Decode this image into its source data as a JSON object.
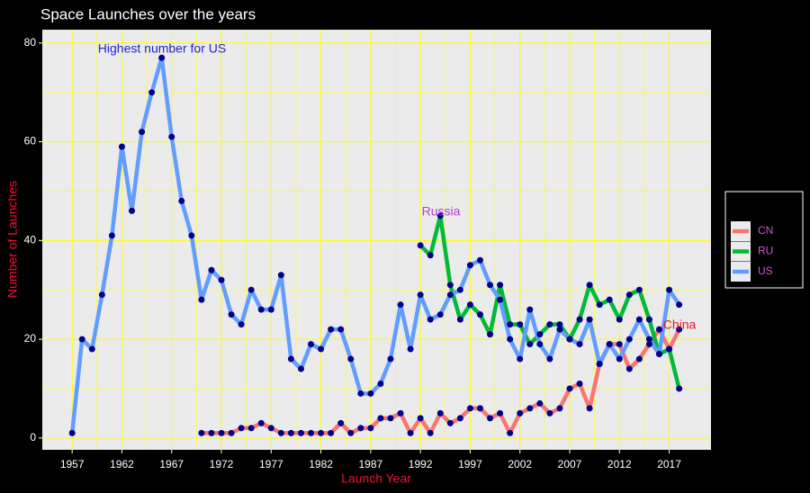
{
  "chart_data": {
    "type": "line",
    "title": "Space Launches over the years",
    "x_label": "Launch Year",
    "y_label": "Number of Launches",
    "xlim": [
      1954,
      2021.2
    ],
    "ylim": [
      -2.4,
      82.7
    ],
    "xticks": [
      1957,
      1962,
      1967,
      1972,
      1977,
      1982,
      1987,
      1992,
      1997,
      2002,
      2007,
      2012,
      2017
    ],
    "yticks": [
      0,
      20,
      40,
      60,
      80
    ],
    "grid": true,
    "grid_color": "#ffff00",
    "panel_color": "#ebebeb",
    "point_color": "#00008b",
    "legend": "right",
    "annotations": [
      {
        "text": "Highest number for US",
        "color": "#2222dd"
      },
      {
        "text": "Russia",
        "color": "#b040d0"
      },
      {
        "text": "China",
        "color": "#ee1133"
      }
    ],
    "series": [
      {
        "name": "CN",
        "color": "#f8766d",
        "x": [
          1970,
          1971,
          1972,
          1973,
          1974,
          1975,
          1976,
          1977,
          1978,
          1979,
          1980,
          1981,
          1982,
          1983,
          1984,
          1985,
          1986,
          1987,
          1988,
          1989,
          1990,
          1991,
          1992,
          1993,
          1994,
          1995,
          1996,
          1997,
          1998,
          1999,
          2000,
          2001,
          2002,
          2003,
          2004,
          2005,
          2006,
          2007,
          2008,
          2009,
          2010,
          2011,
          2012,
          2013,
          2014,
          2015,
          2016,
          2017,
          2018
        ],
        "values": [
          1,
          1,
          1,
          1,
          2,
          2,
          3,
          2,
          1,
          1,
          1,
          1,
          1,
          1,
          3,
          1,
          2,
          2,
          4,
          4,
          5,
          1,
          4,
          1,
          5,
          3,
          4,
          6,
          6,
          4,
          5,
          1,
          5,
          6,
          7,
          5,
          6,
          10,
          11,
          6,
          15,
          19,
          19,
          14,
          16,
          19,
          22,
          18,
          22
        ]
      },
      {
        "name": "RU",
        "color": "#00ba38",
        "x": [
          1992,
          1993,
          1994,
          1995,
          1996,
          1997,
          1998,
          1999,
          2000,
          2001,
          2002,
          2003,
          2004,
          2005,
          2006,
          2007,
          2008,
          2009,
          2010,
          2011,
          2012,
          2013,
          2014,
          2015,
          2016,
          2017,
          2018
        ],
        "values": [
          39,
          37,
          45,
          31,
          24,
          27,
          25,
          21,
          31,
          23,
          23,
          19,
          21,
          23,
          23,
          20,
          24,
          31,
          27,
          28,
          24,
          29,
          30,
          24,
          17,
          18,
          10
        ]
      },
      {
        "name": "US",
        "color": "#619cff",
        "x": [
          1957,
          1958,
          1959,
          1960,
          1961,
          1962,
          1963,
          1964,
          1965,
          1966,
          1967,
          1968,
          1969,
          1970,
          1971,
          1972,
          1973,
          1974,
          1975,
          1976,
          1977,
          1978,
          1979,
          1980,
          1981,
          1982,
          1983,
          1984,
          1985,
          1986,
          1987,
          1988,
          1989,
          1990,
          1991,
          1992,
          1993,
          1994,
          1995,
          1996,
          1997,
          1998,
          1999,
          2000,
          2001,
          2002,
          2003,
          2004,
          2005,
          2006,
          2007,
          2008,
          2009,
          2010,
          2011,
          2012,
          2013,
          2014,
          2015,
          2016,
          2017,
          2018
        ],
        "values": [
          1,
          20,
          18,
          29,
          41,
          59,
          46,
          62,
          70,
          77,
          61,
          48,
          41,
          28,
          34,
          32,
          25,
          23,
          30,
          26,
          26,
          33,
          16,
          14,
          19,
          18,
          22,
          22,
          16,
          9,
          9,
          11,
          16,
          27,
          18,
          29,
          24,
          25,
          29,
          30,
          35,
          36,
          31,
          28,
          20,
          16,
          26,
          19,
          16,
          22,
          20,
          19,
          24,
          15,
          19,
          16,
          20,
          24,
          20,
          17,
          30,
          27
        ]
      }
    ]
  }
}
